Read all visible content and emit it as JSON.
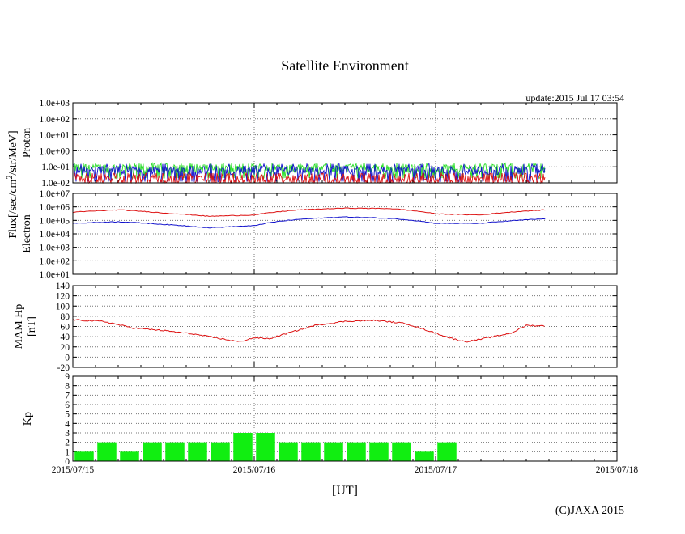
{
  "title": "Satellite Environment",
  "update_text": "update:2015 Jul 17 03:54",
  "copyright": "(C)JAXA 2015",
  "colors": {
    "red": "#dd1111",
    "blue": "#1111cc",
    "green": "#22dd22",
    "bar_green": "#11ee11",
    "grid": "#777777",
    "axis": "#000000"
  },
  "chart_data": {
    "type": "multi-panel",
    "shared_x": {
      "label": "[UT]",
      "ticks": [
        "2015/07/15",
        "2015/07/16",
        "2015/07/17",
        "2015/07/18"
      ],
      "range": [
        "2015-07-15T00:00",
        "2015-07-18T00:00"
      ]
    },
    "shared_ylabel": {
      "text": "Flux[/sec/cm",
      "superscript": "2",
      "suffix": "/str/MeV]"
    },
    "panels": [
      {
        "id": "proton",
        "ylabel": "Proton",
        "scale": "log",
        "ylim": [
          "1.0e-02",
          "1.0e+03"
        ],
        "yticks": [
          "1.0e+03",
          "1.0e+02",
          "1.0e+01",
          "1.0e+00",
          "1.0e-01",
          "1.0e-02"
        ],
        "series": [
          {
            "color": "green",
            "baseline": 0.085,
            "noise_low": 0.02,
            "noise_high": 0.13
          },
          {
            "color": "blue",
            "baseline": 0.06,
            "noise_low": 0.012,
            "noise_high": 0.15
          },
          {
            "color": "red",
            "baseline": 0.02,
            "noise_low": 0.01,
            "noise_high": 0.04
          }
        ]
      },
      {
        "id": "electron",
        "ylabel": "Electron",
        "scale": "log",
        "ylim": [
          "1.0e+01",
          "1.0e+07"
        ],
        "yticks": [
          "1.0e+07",
          "1.0e+06",
          "1.0e+05",
          "1.0e+04",
          "1.0e+03",
          "1.0e+02",
          "1.0e+01"
        ],
        "series": [
          {
            "color": "red",
            "x_hours": [
              0,
              6,
              12,
              18,
              24,
              30,
              36,
              42,
              48,
              54,
              62.5
            ],
            "y": [
              400000,
              600000,
              350000,
              200000,
              250000,
              600000,
              800000,
              750000,
              300000,
              250000,
              600000
            ]
          },
          {
            "color": "blue",
            "x_hours": [
              0,
              6,
              12,
              18,
              24,
              30,
              36,
              42,
              48,
              54,
              62.5
            ],
            "y": [
              60000,
              80000,
              50000,
              28000,
              40000,
              120000,
              180000,
              140000,
              60000,
              60000,
              130000
            ]
          }
        ]
      },
      {
        "id": "mam-hp",
        "ylabel_lines": [
          "MAM Hp",
          "[nT]"
        ],
        "scale": "linear",
        "ylim": [
          -20,
          140
        ],
        "yticks": [
          140,
          120,
          100,
          80,
          60,
          40,
          20,
          0,
          -20
        ],
        "series": [
          {
            "color": "red",
            "x_hours": [
              0,
              4,
              8,
              12,
              16,
              20,
              22,
              24,
              26,
              28,
              32,
              36,
              40,
              44,
              48,
              50,
              52,
              54,
              58,
              60,
              62.5
            ],
            "y": [
              73,
              70,
              57,
              52,
              45,
              35,
              30,
              38,
              36,
              45,
              62,
              70,
              72,
              66,
              47,
              37,
              30,
              35,
              47,
              62,
              61
            ]
          }
        ]
      },
      {
        "id": "kp",
        "ylabel": "Kp",
        "type": "bar",
        "ylim": [
          0,
          9
        ],
        "yticks": [
          9,
          8,
          7,
          6,
          5,
          4,
          3,
          2,
          1,
          0
        ],
        "bar_hours": 3,
        "values": [
          1,
          2,
          1,
          2,
          2,
          2,
          2,
          3,
          3,
          2,
          2,
          2,
          2,
          2,
          2,
          1,
          2
        ]
      }
    ]
  }
}
